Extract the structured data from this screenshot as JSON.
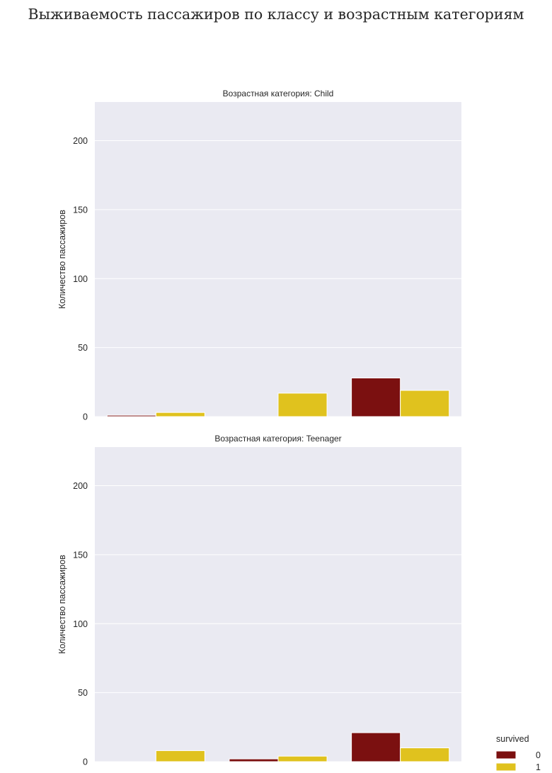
{
  "chart_data": {
    "type": "bar",
    "title": "Выживаемость пассажиров по классу и возрастным категориям",
    "ylim": [
      0,
      228
    ],
    "yticks": [
      0,
      50,
      100,
      150,
      200
    ],
    "grid": true,
    "legend": {
      "title": "survived",
      "placement": "right-bottom",
      "entries": [
        {
          "label": "0",
          "color": "#7b1010"
        },
        {
          "label": "1",
          "color": "#e0c21e"
        }
      ]
    },
    "groups_per_panel": 3,
    "panels": [
      {
        "title": "Возрастная категория: Child",
        "ylabel": "Количество пассажиров",
        "series": [
          {
            "name": "0",
            "values": [
              1,
              0,
              28
            ]
          },
          {
            "name": "1",
            "values": [
              3,
              17,
              19
            ]
          }
        ]
      },
      {
        "title": "Возрастная категория: Teenager",
        "ylabel": "Количество пассажиров",
        "series": [
          {
            "name": "0",
            "values": [
              0,
              2,
              21
            ]
          },
          {
            "name": "1",
            "values": [
              8,
              4,
              10
            ]
          }
        ]
      }
    ]
  }
}
